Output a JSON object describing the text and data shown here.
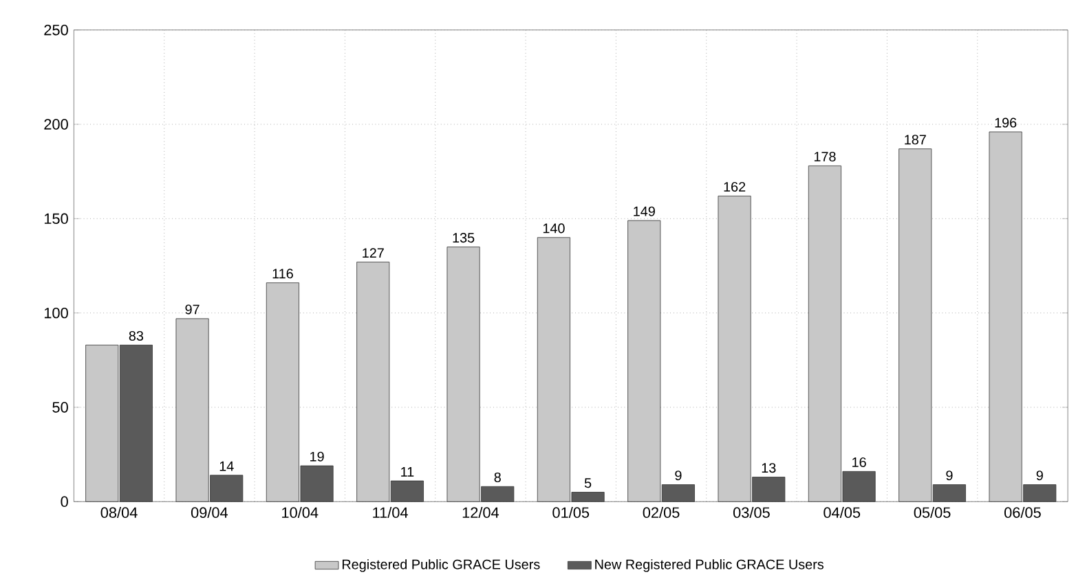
{
  "chart_data": {
    "type": "bar",
    "categories": [
      "08/04",
      "09/04",
      "10/04",
      "11/04",
      "12/04",
      "01/05",
      "02/05",
      "03/05",
      "04/05",
      "05/05",
      "06/05"
    ],
    "series": [
      {
        "name": "Registered Public GRACE Users",
        "color": "#c8c8c8",
        "values": [
          83,
          97,
          116,
          127,
          135,
          140,
          149,
          162,
          178,
          187,
          196
        ],
        "value_labels": [
          null,
          "97",
          "116",
          "127",
          "135",
          "140",
          "149",
          "162",
          "178",
          "187",
          "196"
        ]
      },
      {
        "name": "New Registered Public GRACE Users",
        "color": "#5a5a5a",
        "values": [
          83,
          14,
          19,
          11,
          8,
          5,
          9,
          13,
          16,
          9,
          9
        ],
        "value_labels": [
          "83",
          "14",
          "19",
          "11",
          "8",
          "5",
          "9",
          "13",
          "16",
          "9",
          "9"
        ]
      }
    ],
    "ylim": [
      0,
      250
    ],
    "yticks": [
      0,
      50,
      100,
      150,
      200,
      250
    ],
    "grid": true,
    "legend": "bottom"
  }
}
